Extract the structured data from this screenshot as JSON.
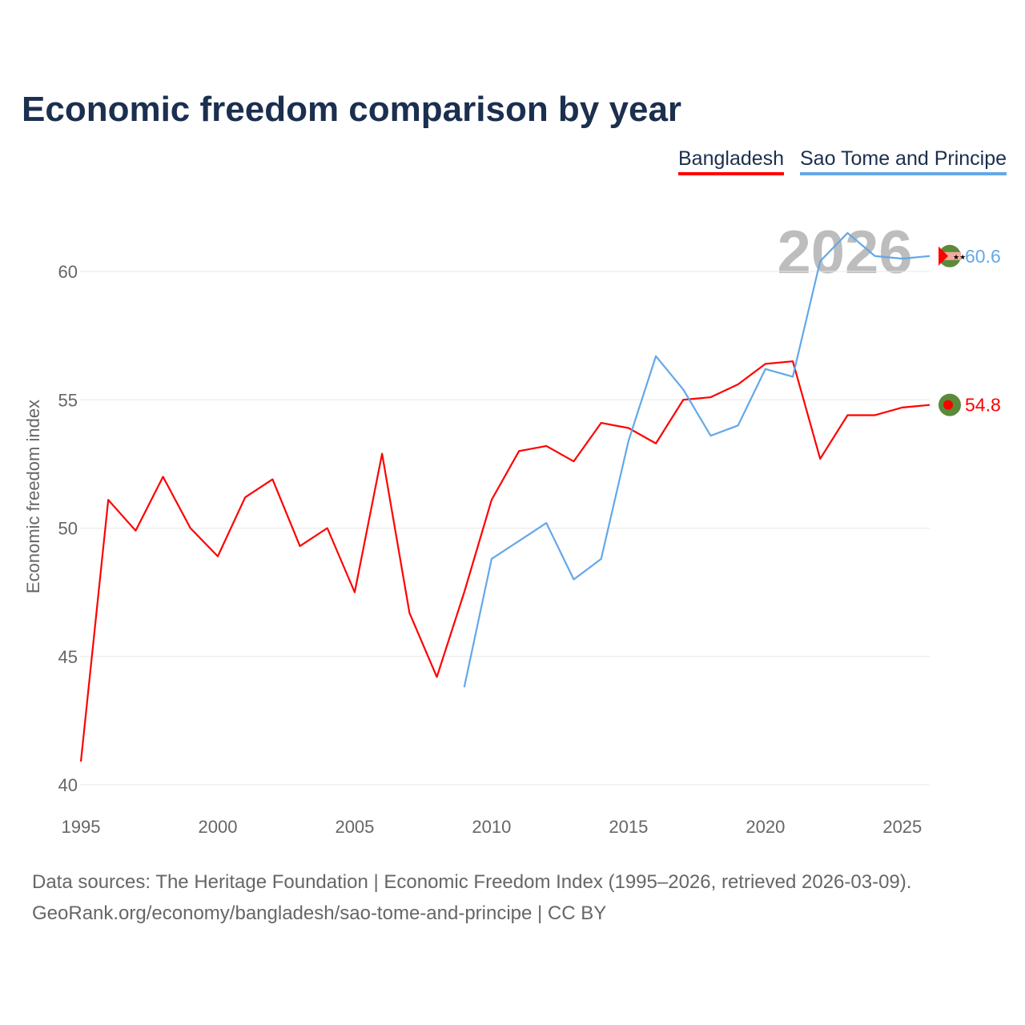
{
  "chart_data": {
    "type": "line",
    "title": "Economic freedom comparison by year",
    "xlabel": "",
    "ylabel": "Economic freedom index",
    "xlim": [
      1995,
      2026
    ],
    "ylim": [
      40,
      62
    ],
    "yticks": [
      40,
      45,
      50,
      55,
      60
    ],
    "xticks": [
      1995,
      2000,
      2005,
      2010,
      2015,
      2020,
      2025
    ],
    "grid": true,
    "legend_position": "top-right",
    "watermark_year": "2026",
    "series": [
      {
        "name": "Bangladesh",
        "color": "#ff0000",
        "end_label": "54.8",
        "x": [
          1995,
          1996,
          1997,
          1998,
          1999,
          2000,
          2001,
          2002,
          2003,
          2004,
          2005,
          2006,
          2007,
          2008,
          2009,
          2010,
          2011,
          2012,
          2013,
          2014,
          2015,
          2016,
          2017,
          2018,
          2019,
          2020,
          2021,
          2022,
          2023,
          2024,
          2025,
          2026
        ],
        "values": [
          40.9,
          51.1,
          49.9,
          52.0,
          50.0,
          48.9,
          51.2,
          51.9,
          49.3,
          50.0,
          47.5,
          52.9,
          46.7,
          44.2,
          47.5,
          51.1,
          53.0,
          53.2,
          52.6,
          54.1,
          53.9,
          53.3,
          55.0,
          55.1,
          55.6,
          56.4,
          56.5,
          52.7,
          54.4,
          54.4,
          54.7,
          54.8
        ]
      },
      {
        "name": "Sao Tome and Principe",
        "color": "#63a8e9",
        "end_label": "60.6",
        "x": [
          2009,
          2010,
          2011,
          2012,
          2013,
          2014,
          2015,
          2016,
          2017,
          2018,
          2019,
          2020,
          2021,
          2022,
          2023,
          2024,
          2025,
          2026
        ],
        "values": [
          43.8,
          48.8,
          49.5,
          50.2,
          48.0,
          48.8,
          53.4,
          56.7,
          55.4,
          53.6,
          54.0,
          56.2,
          55.9,
          60.4,
          61.5,
          60.6,
          60.5,
          60.6
        ]
      }
    ]
  },
  "legend": [
    "Bangladesh",
    "Sao Tome and Principe"
  ],
  "footer": {
    "line1": "Data sources: The Heritage Foundation | Economic Freedom Index (1995–2026, retrieved 2026-03-09).",
    "line2": "GeoRank.org/economy/bangladesh/sao-tome-and-principe | CC BY"
  }
}
